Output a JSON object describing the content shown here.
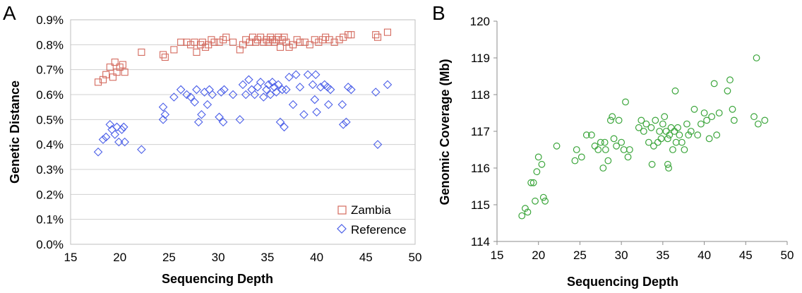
{
  "chart_data": [
    {
      "panel": "A",
      "type": "scatter",
      "xlabel": "Sequencing Depth",
      "ylabel": "Genetic Distance",
      "xlim": [
        15,
        50
      ],
      "ylim": [
        0.0,
        0.9
      ],
      "xticks": [
        "15",
        "20",
        "25",
        "30",
        "35",
        "40",
        "45",
        "50"
      ],
      "yticks": [
        "0.0%",
        "0.1%",
        "0.2%",
        "0.3%",
        "0.4%",
        "0.5%",
        "0.6%",
        "0.7%",
        "0.8%",
        "0.9%"
      ],
      "grid": true,
      "legend_position": "bottom-right",
      "series": [
        {
          "name": "Zambia",
          "marker": "square",
          "color": "#d46a5e",
          "points": [
            [
              17.8,
              0.65
            ],
            [
              18.3,
              0.66
            ],
            [
              18.6,
              0.68
            ],
            [
              19.0,
              0.71
            ],
            [
              19.3,
              0.67
            ],
            [
              19.5,
              0.73
            ],
            [
              19.7,
              0.69
            ],
            [
              20.0,
              0.71
            ],
            [
              20.3,
              0.72
            ],
            [
              20.5,
              0.69
            ],
            [
              22.2,
              0.77
            ],
            [
              24.4,
              0.76
            ],
            [
              24.6,
              0.75
            ],
            [
              25.5,
              0.78
            ],
            [
              26.2,
              0.81
            ],
            [
              26.8,
              0.81
            ],
            [
              27.2,
              0.8
            ],
            [
              27.6,
              0.81
            ],
            [
              27.8,
              0.77
            ],
            [
              28.2,
              0.8
            ],
            [
              28.4,
              0.81
            ],
            [
              28.7,
              0.79
            ],
            [
              29.0,
              0.8
            ],
            [
              29.3,
              0.82
            ],
            [
              29.6,
              0.81
            ],
            [
              30.1,
              0.81
            ],
            [
              30.5,
              0.82
            ],
            [
              30.8,
              0.83
            ],
            [
              31.5,
              0.81
            ],
            [
              32.2,
              0.78
            ],
            [
              32.5,
              0.8
            ],
            [
              32.8,
              0.82
            ],
            [
              33.2,
              0.81
            ],
            [
              33.5,
              0.83
            ],
            [
              33.8,
              0.81
            ],
            [
              34.0,
              0.82
            ],
            [
              34.3,
              0.83
            ],
            [
              34.6,
              0.81
            ],
            [
              34.9,
              0.82
            ],
            [
              35.1,
              0.81
            ],
            [
              35.3,
              0.83
            ],
            [
              35.5,
              0.82
            ],
            [
              35.7,
              0.81
            ],
            [
              35.9,
              0.82
            ],
            [
              36.1,
              0.83
            ],
            [
              36.3,
              0.79
            ],
            [
              36.5,
              0.82
            ],
            [
              36.7,
              0.83
            ],
            [
              36.9,
              0.81
            ],
            [
              37.2,
              0.79
            ],
            [
              37.6,
              0.8
            ],
            [
              38.0,
              0.82
            ],
            [
              38.3,
              0.81
            ],
            [
              38.8,
              0.81
            ],
            [
              39.3,
              0.8
            ],
            [
              39.8,
              0.82
            ],
            [
              40.2,
              0.81
            ],
            [
              40.6,
              0.82
            ],
            [
              40.9,
              0.83
            ],
            [
              41.3,
              0.82
            ],
            [
              41.8,
              0.81
            ],
            [
              42.3,
              0.82
            ],
            [
              42.7,
              0.83
            ],
            [
              43.2,
              0.84
            ],
            [
              43.5,
              0.84
            ],
            [
              46.0,
              0.84
            ],
            [
              46.2,
              0.83
            ],
            [
              47.2,
              0.85
            ]
          ]
        },
        {
          "name": "Reference",
          "marker": "diamond",
          "color": "#4a5ee8",
          "points": [
            [
              17.8,
              0.37
            ],
            [
              18.3,
              0.42
            ],
            [
              18.6,
              0.43
            ],
            [
              19.0,
              0.48
            ],
            [
              19.2,
              0.46
            ],
            [
              19.5,
              0.44
            ],
            [
              19.7,
              0.47
            ],
            [
              19.9,
              0.41
            ],
            [
              20.2,
              0.46
            ],
            [
              20.5,
              0.41
            ],
            [
              20.4,
              0.47
            ],
            [
              22.2,
              0.38
            ],
            [
              24.4,
              0.55
            ],
            [
              24.6,
              0.52
            ],
            [
              24.4,
              0.5
            ],
            [
              25.5,
              0.59
            ],
            [
              26.2,
              0.62
            ],
            [
              26.8,
              0.6
            ],
            [
              27.2,
              0.59
            ],
            [
              27.6,
              0.57
            ],
            [
              27.8,
              0.62
            ],
            [
              28.0,
              0.49
            ],
            [
              28.3,
              0.52
            ],
            [
              28.6,
              0.61
            ],
            [
              28.9,
              0.56
            ],
            [
              29.1,
              0.62
            ],
            [
              29.4,
              0.6
            ],
            [
              30.1,
              0.51
            ],
            [
              30.3,
              0.61
            ],
            [
              30.6,
              0.62
            ],
            [
              30.5,
              0.49
            ],
            [
              31.5,
              0.6
            ],
            [
              32.2,
              0.5
            ],
            [
              32.5,
              0.64
            ],
            [
              32.8,
              0.6
            ],
            [
              33.1,
              0.66
            ],
            [
              33.4,
              0.62
            ],
            [
              33.7,
              0.6
            ],
            [
              34.0,
              0.63
            ],
            [
              34.3,
              0.65
            ],
            [
              34.6,
              0.59
            ],
            [
              34.9,
              0.62
            ],
            [
              35.1,
              0.64
            ],
            [
              35.3,
              0.6
            ],
            [
              35.5,
              0.65
            ],
            [
              35.7,
              0.63
            ],
            [
              35.9,
              0.61
            ],
            [
              36.1,
              0.64
            ],
            [
              36.3,
              0.49
            ],
            [
              36.5,
              0.62
            ],
            [
              36.7,
              0.47
            ],
            [
              36.9,
              0.62
            ],
            [
              37.2,
              0.67
            ],
            [
              37.6,
              0.56
            ],
            [
              37.9,
              0.68
            ],
            [
              38.3,
              0.63
            ],
            [
              38.7,
              0.52
            ],
            [
              39.1,
              0.68
            ],
            [
              39.6,
              0.64
            ],
            [
              39.9,
              0.68
            ],
            [
              39.8,
              0.58
            ],
            [
              40.0,
              0.53
            ],
            [
              40.4,
              0.63
            ],
            [
              40.8,
              0.64
            ],
            [
              41.1,
              0.63
            ],
            [
              41.4,
              0.62
            ],
            [
              41.2,
              0.56
            ],
            [
              42.6,
              0.56
            ],
            [
              42.7,
              0.48
            ],
            [
              43.0,
              0.49
            ],
            [
              43.2,
              0.63
            ],
            [
              43.5,
              0.62
            ],
            [
              46.0,
              0.61
            ],
            [
              46.2,
              0.4
            ],
            [
              47.2,
              0.64
            ]
          ]
        }
      ]
    },
    {
      "panel": "B",
      "type": "scatter",
      "xlabel": "Sequencing Depth",
      "ylabel": "Genomic Coverage (Mb)",
      "xlim": [
        15,
        50
      ],
      "ylim": [
        114,
        120
      ],
      "xticks": [
        "15",
        "20",
        "25",
        "30",
        "35",
        "40",
        "45",
        "50"
      ],
      "yticks": [
        "114",
        "115",
        "116",
        "117",
        "118",
        "119",
        "120"
      ],
      "grid": false,
      "series": [
        {
          "marker": "circle",
          "color": "#3aa53a",
          "points": [
            [
              18.0,
              114.7
            ],
            [
              18.4,
              114.9
            ],
            [
              18.7,
              114.8
            ],
            [
              19.1,
              115.6
            ],
            [
              19.4,
              115.6
            ],
            [
              19.6,
              115.1
            ],
            [
              19.8,
              115.9
            ],
            [
              20.0,
              116.3
            ],
            [
              20.4,
              116.1
            ],
            [
              20.6,
              115.2
            ],
            [
              20.8,
              115.1
            ],
            [
              22.2,
              116.6
            ],
            [
              24.4,
              116.2
            ],
            [
              24.6,
              116.5
            ],
            [
              25.2,
              116.3
            ],
            [
              25.8,
              116.9
            ],
            [
              26.4,
              116.9
            ],
            [
              26.8,
              116.6
            ],
            [
              27.2,
              116.5
            ],
            [
              27.5,
              116.7
            ],
            [
              27.8,
              116.0
            ],
            [
              28.1,
              116.5
            ],
            [
              28.4,
              116.2
            ],
            [
              28.7,
              117.3
            ],
            [
              28.9,
              117.4
            ],
            [
              29.1,
              116.8
            ],
            [
              29.4,
              116.6
            ],
            [
              29.7,
              117.3
            ],
            [
              30.0,
              116.7
            ],
            [
              30.3,
              116.5
            ],
            [
              30.5,
              117.8
            ],
            [
              30.8,
              116.3
            ],
            [
              31.0,
              116.5
            ],
            [
              32.1,
              117.1
            ],
            [
              32.4,
              117.3
            ],
            [
              32.7,
              117.0
            ],
            [
              33.0,
              117.2
            ],
            [
              33.3,
              116.7
            ],
            [
              33.6,
              117.1
            ],
            [
              33.9,
              116.6
            ],
            [
              34.1,
              117.3
            ],
            [
              34.4,
              116.7
            ],
            [
              34.6,
              117.0
            ],
            [
              34.8,
              116.8
            ],
            [
              35.0,
              117.2
            ],
            [
              35.2,
              117.4
            ],
            [
              35.4,
              117.0
            ],
            [
              35.6,
              116.8
            ],
            [
              35.8,
              116.9
            ],
            [
              36.0,
              117.1
            ],
            [
              36.2,
              116.5
            ],
            [
              36.4,
              117.0
            ],
            [
              36.6,
              116.7
            ],
            [
              36.8,
              117.1
            ],
            [
              37.0,
              116.9
            ],
            [
              37.3,
              116.7
            ],
            [
              37.6,
              116.5
            ],
            [
              37.9,
              117.2
            ],
            [
              38.1,
              116.9
            ],
            [
              38.4,
              117.0
            ],
            [
              38.8,
              117.6
            ],
            [
              39.2,
              116.9
            ],
            [
              39.6,
              117.2
            ],
            [
              40.0,
              117.5
            ],
            [
              40.3,
              117.3
            ],
            [
              40.6,
              116.8
            ],
            [
              40.9,
              117.4
            ],
            [
              41.2,
              118.3
            ],
            [
              41.5,
              116.9
            ],
            [
              41.8,
              117.5
            ],
            [
              42.8,
              118.1
            ],
            [
              43.1,
              118.4
            ],
            [
              43.4,
              117.6
            ],
            [
              43.6,
              117.3
            ],
            [
              46.0,
              117.4
            ],
            [
              46.3,
              119.0
            ],
            [
              46.5,
              117.2
            ],
            [
              47.3,
              117.3
            ],
            [
              33.7,
              116.1
            ],
            [
              35.6,
              116.1
            ],
            [
              35.7,
              116.0
            ],
            [
              36.5,
              118.1
            ],
            [
              28.0,
              116.7
            ]
          ]
        }
      ]
    }
  ]
}
